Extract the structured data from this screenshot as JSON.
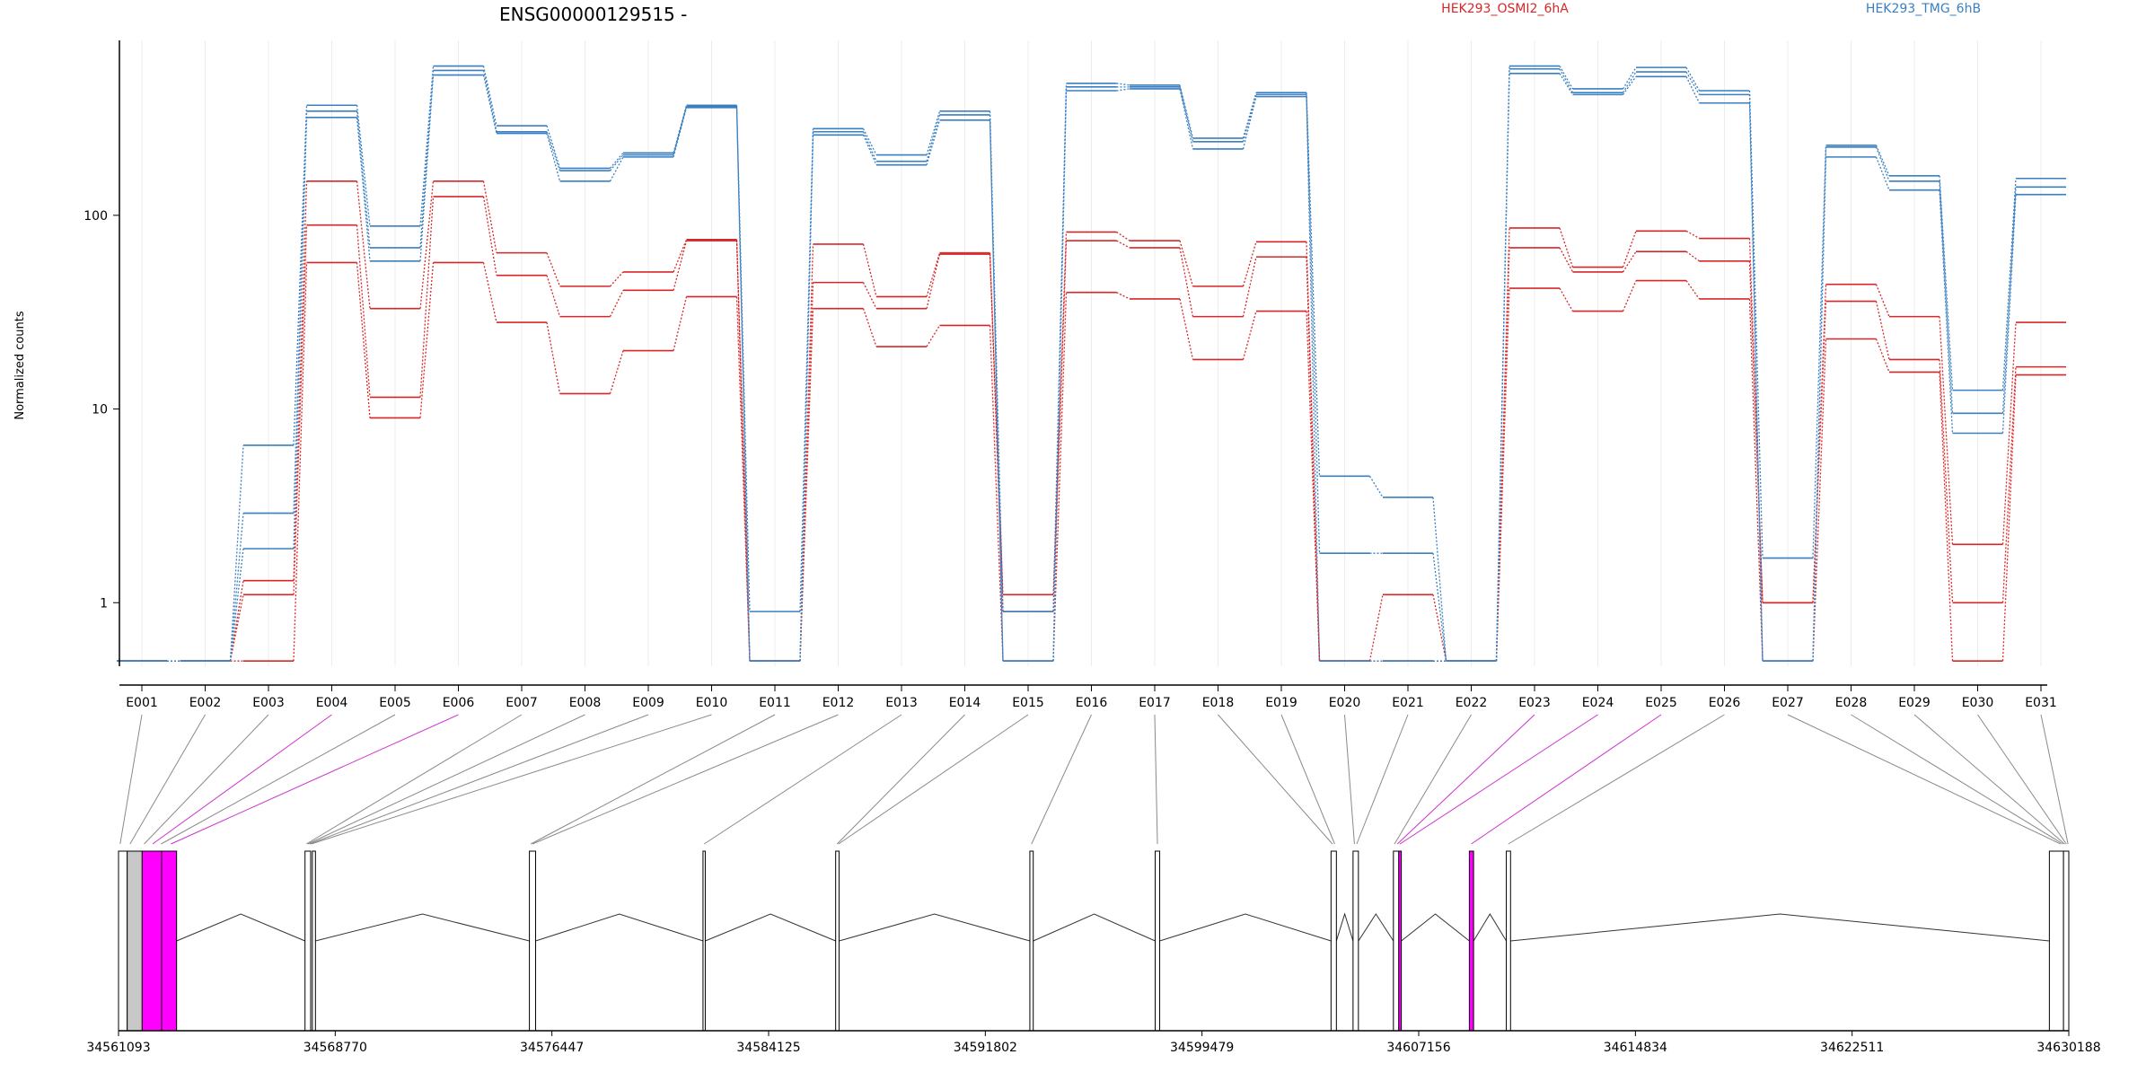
{
  "chart_data": {
    "type": "line",
    "title": "ENSG00000129515 -",
    "ylabel": "Normalized counts",
    "yscale": "log",
    "ylim": [
      0.47,
      800
    ],
    "yticks": [
      {
        "label": "1",
        "value": 1
      },
      {
        "label": "10",
        "value": 10
      },
      {
        "label": "100",
        "value": 100
      }
    ],
    "grid": "vertical",
    "legend": [
      {
        "name": "HEK293_OSMI2_6hA",
        "color": "#d62728"
      },
      {
        "name": "HEK293_TMG_6hB",
        "color": "#3a7fc0"
      }
    ],
    "categories": [
      "E001",
      "E002",
      "E003",
      "E004",
      "E005",
      "E006",
      "E007",
      "E008",
      "E009",
      "E010",
      "E011",
      "E012",
      "E013",
      "E014",
      "E015",
      "E016",
      "E017",
      "E018",
      "E019",
      "E020",
      "E021",
      "E022",
      "E023",
      "E024",
      "E025",
      "E026",
      "E027",
      "E028",
      "E029",
      "E030",
      "E031"
    ],
    "series": [
      {
        "group": "HEK293_OSMI2_6hA",
        "color": "#d62728",
        "values": [
          0.5,
          0.5,
          1.3,
          150,
          33,
          150,
          64,
          43,
          51,
          75,
          0.5,
          71,
          38,
          64,
          1.1,
          82,
          74,
          43,
          73,
          0.5,
          1.1,
          0.5,
          86,
          54,
          83,
          76,
          1.0,
          44,
          30,
          2.0,
          28
        ]
      },
      {
        "group": "HEK293_OSMI2_6hA",
        "color": "#d62728",
        "values": [
          0.5,
          0.5,
          1.1,
          89,
          11.5,
          125,
          49,
          30,
          41,
          74,
          0.5,
          45,
          33,
          63,
          0.9,
          74,
          68,
          30,
          61,
          0.5,
          0.5,
          0.5,
          68,
          51,
          65,
          58,
          1.0,
          36,
          18,
          1.0,
          16.5
        ]
      },
      {
        "group": "HEK293_OSMI2_6hA",
        "color": "#d62728",
        "values": [
          0.5,
          0.5,
          0.5,
          57,
          9,
          57,
          28,
          12,
          20,
          38,
          0.5,
          33,
          21,
          27,
          0.5,
          40,
          37,
          18,
          32,
          0.5,
          0.5,
          0.5,
          42,
          32,
          46,
          37,
          0.5,
          23,
          15.5,
          0.5,
          15
        ]
      },
      {
        "group": "HEK293_TMG_6hB",
        "color": "#3a7fc0",
        "values": [
          0.5,
          0.5,
          6.5,
          370,
          88,
          590,
          290,
          175,
          210,
          370,
          0.9,
          280,
          205,
          345,
          0.9,
          480,
          470,
          250,
          430,
          4.5,
          3.5,
          0.5,
          590,
          450,
          580,
          440,
          1.7,
          230,
          160,
          12.5,
          155
        ]
      },
      {
        "group": "HEK293_TMG_6hB",
        "color": "#3a7fc0",
        "values": [
          0.5,
          0.5,
          2.9,
          345,
          68,
          560,
          270,
          170,
          205,
          365,
          0.5,
          270,
          190,
          330,
          0.5,
          460,
          460,
          240,
          420,
          1.8,
          1.8,
          0.5,
          570,
          430,
          550,
          420,
          0.5,
          225,
          150,
          9.5,
          140
        ]
      },
      {
        "group": "HEK293_TMG_6hB",
        "color": "#3a7fc0",
        "values": [
          0.5,
          0.5,
          1.9,
          320,
          58,
          530,
          265,
          150,
          200,
          360,
          0.5,
          260,
          182,
          310,
          0.5,
          440,
          450,
          220,
          410,
          0.5,
          0.5,
          0.5,
          540,
          420,
          520,
          380,
          0.5,
          200,
          135,
          7.5,
          128
        ]
      }
    ],
    "genomic_axis": {
      "range": [
        34561093,
        34630188
      ],
      "tick_labels": [
        "34561093",
        "34568770",
        "34576447",
        "34584125",
        "34591802",
        "34599479",
        "34607156",
        "34614834",
        "34622511",
        "34630188"
      ],
      "tick_values": [
        34561093,
        34568770,
        34576447,
        34584125,
        34591802,
        34599479,
        34607156,
        34614834,
        34622511,
        34630188
      ]
    },
    "gene_model": {
      "exon_color": "#ffffff",
      "highlight_color": "#ff00ff",
      "shaded_color": "#c8c8c8",
      "exons": [
        {
          "start": 34561093,
          "end": 34561400,
          "fill": "none"
        },
        {
          "start": 34561400,
          "end": 34561930,
          "fill": "shaded"
        },
        {
          "start": 34561930,
          "end": 34562620,
          "fill": "highlight"
        },
        {
          "start": 34562620,
          "end": 34563150,
          "fill": "highlight"
        },
        {
          "start": 34567700,
          "end": 34567900,
          "fill": "none"
        },
        {
          "start": 34567960,
          "end": 34568070,
          "fill": "none"
        },
        {
          "start": 34575650,
          "end": 34575870,
          "fill": "none"
        },
        {
          "start": 34581800,
          "end": 34581880,
          "fill": "none"
        },
        {
          "start": 34586500,
          "end": 34586620,
          "fill": "none"
        },
        {
          "start": 34593380,
          "end": 34593500,
          "fill": "none"
        },
        {
          "start": 34597820,
          "end": 34597980,
          "fill": "none"
        },
        {
          "start": 34604050,
          "end": 34604240,
          "fill": "none"
        },
        {
          "start": 34604830,
          "end": 34605020,
          "fill": "none"
        },
        {
          "start": 34606260,
          "end": 34606450,
          "fill": "none"
        },
        {
          "start": 34606450,
          "end": 34606540,
          "fill": "highlight"
        },
        {
          "start": 34608950,
          "end": 34609100,
          "fill": "highlight"
        },
        {
          "start": 34610260,
          "end": 34610410,
          "fill": "none"
        },
        {
          "start": 34629500,
          "end": 34630000,
          "fill": "none"
        },
        {
          "start": 34630000,
          "end": 34630188,
          "fill": "none"
        }
      ],
      "exon_bin_mapping": [
        {
          "exon": "E001",
          "pos": 34561150,
          "highlight": false
        },
        {
          "exon": "E002",
          "pos": 34561500,
          "highlight": false
        },
        {
          "exon": "E003",
          "pos": 34562000,
          "highlight": false
        },
        {
          "exon": "E004",
          "pos": 34562300,
          "highlight": true
        },
        {
          "exon": "E005",
          "pos": 34562600,
          "highlight": false
        },
        {
          "exon": "E006",
          "pos": 34562950,
          "highlight": true
        },
        {
          "exon": "E007",
          "pos": 34567750,
          "highlight": false
        },
        {
          "exon": "E008",
          "pos": 34567800,
          "highlight": false
        },
        {
          "exon": "E009",
          "pos": 34567860,
          "highlight": false
        },
        {
          "exon": "E010",
          "pos": 34567920,
          "highlight": false
        },
        {
          "exon": "E011",
          "pos": 34575700,
          "highlight": false
        },
        {
          "exon": "E012",
          "pos": 34575760,
          "highlight": false
        },
        {
          "exon": "E013",
          "pos": 34581840,
          "highlight": false
        },
        {
          "exon": "E014",
          "pos": 34586550,
          "highlight": false
        },
        {
          "exon": "E015",
          "pos": 34586600,
          "highlight": false
        },
        {
          "exon": "E016",
          "pos": 34593440,
          "highlight": false
        },
        {
          "exon": "E017",
          "pos": 34597900,
          "highlight": false
        },
        {
          "exon": "E018",
          "pos": 34604100,
          "highlight": false
        },
        {
          "exon": "E019",
          "pos": 34604180,
          "highlight": false
        },
        {
          "exon": "E020",
          "pos": 34604880,
          "highlight": false
        },
        {
          "exon": "E021",
          "pos": 34604960,
          "highlight": false
        },
        {
          "exon": "E022",
          "pos": 34606300,
          "highlight": false
        },
        {
          "exon": "E023",
          "pos": 34606400,
          "highlight": true
        },
        {
          "exon": "E024",
          "pos": 34606490,
          "highlight": true
        },
        {
          "exon": "E025",
          "pos": 34609020,
          "highlight": true
        },
        {
          "exon": "E026",
          "pos": 34610330,
          "highlight": false
        },
        {
          "exon": "E027",
          "pos": 34629900,
          "highlight": false
        },
        {
          "exon": "E028",
          "pos": 34629980,
          "highlight": false
        },
        {
          "exon": "E029",
          "pos": 34630040,
          "highlight": false
        },
        {
          "exon": "E030",
          "pos": 34630100,
          "highlight": false
        },
        {
          "exon": "E031",
          "pos": 34630160,
          "highlight": false
        }
      ]
    }
  }
}
